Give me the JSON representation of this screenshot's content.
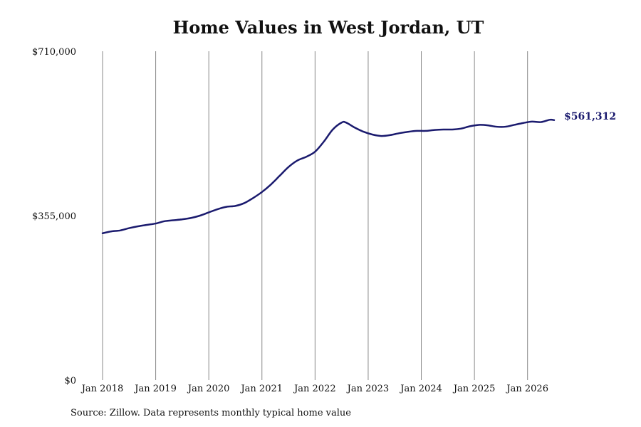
{
  "colors": {
    "line": "#1a1a6e",
    "grid": "#888888"
  },
  "chart_data": {
    "type": "line",
    "title": "Home Values in West Jordan, UT",
    "xlabel": "",
    "ylabel": "",
    "ylim": [
      0,
      710000
    ],
    "xlim": [
      "2018-01",
      "2026-07"
    ],
    "y_ticks": [
      {
        "value": 0,
        "label": "$0"
      },
      {
        "value": 355000,
        "label": "$355,000"
      },
      {
        "value": 710000,
        "label": "$710,000"
      }
    ],
    "x_ticks": [
      {
        "date": "2018-01",
        "label": "Jan 2018"
      },
      {
        "date": "2019-01",
        "label": "Jan 2019"
      },
      {
        "date": "2020-01",
        "label": "Jan 2020"
      },
      {
        "date": "2021-01",
        "label": "Jan 2021"
      },
      {
        "date": "2022-01",
        "label": "Jan 2022"
      },
      {
        "date": "2023-01",
        "label": "Jan 2023"
      },
      {
        "date": "2024-01",
        "label": "Jan 2024"
      },
      {
        "date": "2025-01",
        "label": "Jan 2025"
      },
      {
        "date": "2026-01",
        "label": "Jan 2026"
      }
    ],
    "grid": "vertical",
    "end_label": "$561,312",
    "series": [
      {
        "points": [
          [
            "2018-01",
            317000
          ],
          [
            "2018-03",
            321000
          ],
          [
            "2018-05",
            323000
          ],
          [
            "2018-07",
            328000
          ],
          [
            "2018-09",
            332000
          ],
          [
            "2018-11",
            335000
          ],
          [
            "2019-01",
            338000
          ],
          [
            "2019-03",
            343000
          ],
          [
            "2019-05",
            345000
          ],
          [
            "2019-07",
            347000
          ],
          [
            "2019-09",
            350000
          ],
          [
            "2019-11",
            355000
          ],
          [
            "2020-01",
            362000
          ],
          [
            "2020-03",
            369000
          ],
          [
            "2020-05",
            374000
          ],
          [
            "2020-07",
            376000
          ],
          [
            "2020-09",
            382000
          ],
          [
            "2020-11",
            393000
          ],
          [
            "2021-01",
            406000
          ],
          [
            "2021-03",
            422000
          ],
          [
            "2021-05",
            441000
          ],
          [
            "2021-07",
            460000
          ],
          [
            "2021-09",
            474000
          ],
          [
            "2021-11",
            482000
          ],
          [
            "2022-01",
            493000
          ],
          [
            "2022-03",
            515000
          ],
          [
            "2022-05",
            541000
          ],
          [
            "2022-07",
            556000
          ],
          [
            "2022-08",
            556000
          ],
          [
            "2022-10",
            545000
          ],
          [
            "2022-12",
            536000
          ],
          [
            "2023-02",
            530000
          ],
          [
            "2023-04",
            527000
          ],
          [
            "2023-06",
            529000
          ],
          [
            "2023-08",
            533000
          ],
          [
            "2023-10",
            536000
          ],
          [
            "2023-12",
            538000
          ],
          [
            "2024-02",
            538000
          ],
          [
            "2024-04",
            540000
          ],
          [
            "2024-06",
            541000
          ],
          [
            "2024-08",
            541000
          ],
          [
            "2024-10",
            543000
          ],
          [
            "2024-12",
            548000
          ],
          [
            "2025-02",
            551000
          ],
          [
            "2025-04",
            550000
          ],
          [
            "2025-06",
            547000
          ],
          [
            "2025-08",
            547000
          ],
          [
            "2025-10",
            551000
          ],
          [
            "2025-12",
            555000
          ],
          [
            "2026-02",
            558000
          ],
          [
            "2026-04",
            557000
          ],
          [
            "2026-06",
            562000
          ],
          [
            "2026-07",
            561312
          ]
        ]
      }
    ]
  },
  "source_note": "Source: Zillow. Data represents monthly typical home value"
}
